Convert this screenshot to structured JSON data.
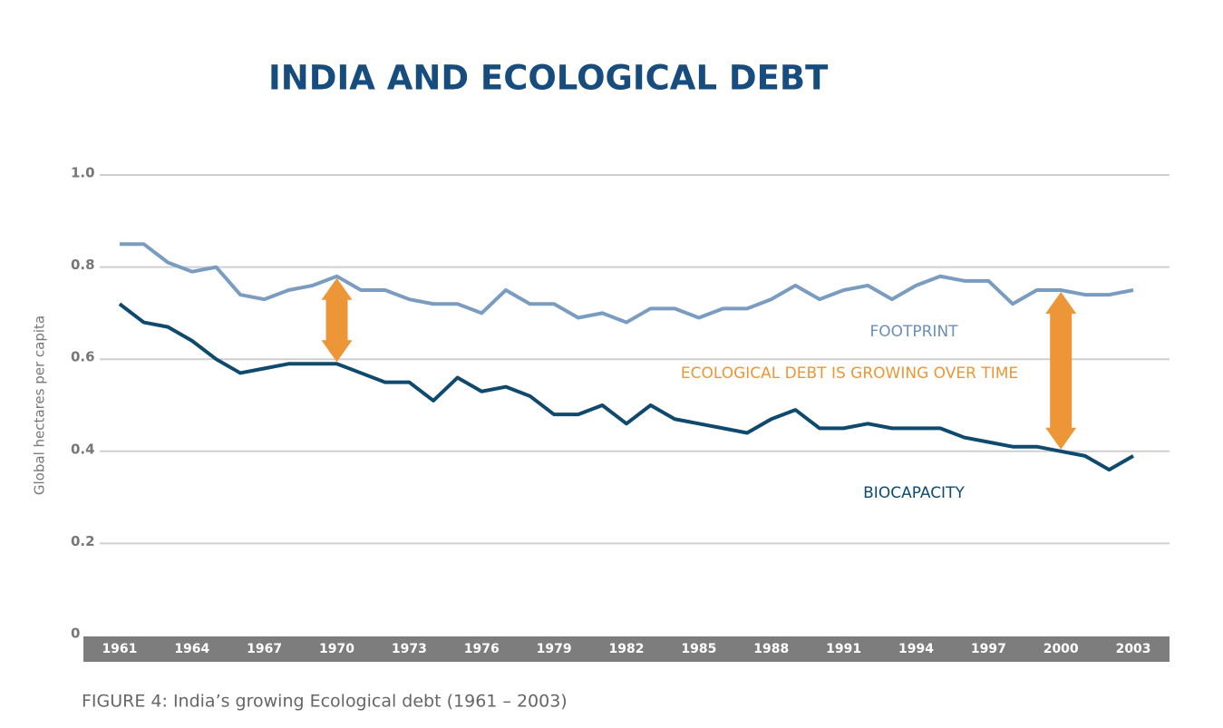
{
  "chart_data": {
    "type": "line",
    "title": "INDIA AND ECOLOGICAL DEBT",
    "y_label": "Global hectares per capita",
    "caption": "FIGURE 4:  India’s growing Ecological debt (1961 – 2003)",
    "annotations": {
      "footprint": "FOOTPRINT",
      "biocapacity": "BIOCAPACITY",
      "debt": "ECOLOGICAL DEBT IS GROWING OVER TIME"
    },
    "x": [
      1961,
      1962,
      1963,
      1964,
      1965,
      1966,
      1967,
      1968,
      1969,
      1970,
      1971,
      1972,
      1973,
      1974,
      1975,
      1976,
      1977,
      1978,
      1979,
      1980,
      1981,
      1982,
      1983,
      1984,
      1985,
      1986,
      1987,
      1988,
      1989,
      1990,
      1991,
      1992,
      1993,
      1994,
      1995,
      1996,
      1997,
      1998,
      1999,
      2000,
      2001,
      2002,
      2003
    ],
    "series": [
      {
        "name": "FOOTPRINT",
        "color": "#7b9cc1",
        "values": [
          0.85,
          0.85,
          0.81,
          0.79,
          0.8,
          0.74,
          0.73,
          0.75,
          0.76,
          0.78,
          0.75,
          0.75,
          0.73,
          0.72,
          0.72,
          0.7,
          0.75,
          0.72,
          0.72,
          0.69,
          0.7,
          0.68,
          0.71,
          0.71,
          0.69,
          0.71,
          0.71,
          0.73,
          0.76,
          0.73,
          0.75,
          0.76,
          0.73,
          0.76,
          0.78,
          0.77,
          0.77,
          0.72,
          0.75,
          0.75,
          0.74,
          0.74,
          0.75
        ]
      },
      {
        "name": "BIOCAPACITY",
        "color": "#0f4a6e",
        "values": [
          0.72,
          0.68,
          0.67,
          0.64,
          0.6,
          0.57,
          0.58,
          0.59,
          0.59,
          0.59,
          0.57,
          0.55,
          0.55,
          0.51,
          0.56,
          0.53,
          0.54,
          0.52,
          0.48,
          0.48,
          0.5,
          0.46,
          0.5,
          0.47,
          0.46,
          0.45,
          0.44,
          0.47,
          0.49,
          0.45,
          0.45,
          0.46,
          0.45,
          0.45,
          0.45,
          0.43,
          0.42,
          0.41,
          0.41,
          0.4,
          0.39,
          0.36,
          0.39
        ]
      }
    ],
    "debt_color": "#ec9638",
    "xlim": [
      1959.5,
      2004.5
    ],
    "xticks": [
      1961,
      1964,
      1967,
      1970,
      1973,
      1976,
      1979,
      1982,
      1985,
      1988,
      1991,
      1994,
      1997,
      2000,
      2003
    ],
    "ylim": [
      0,
      1
    ],
    "yticks": [
      0,
      0.2,
      0.4,
      0.6,
      0.8,
      {
        "value": 1,
        "label": "1.0"
      }
    ],
    "grid": true
  }
}
